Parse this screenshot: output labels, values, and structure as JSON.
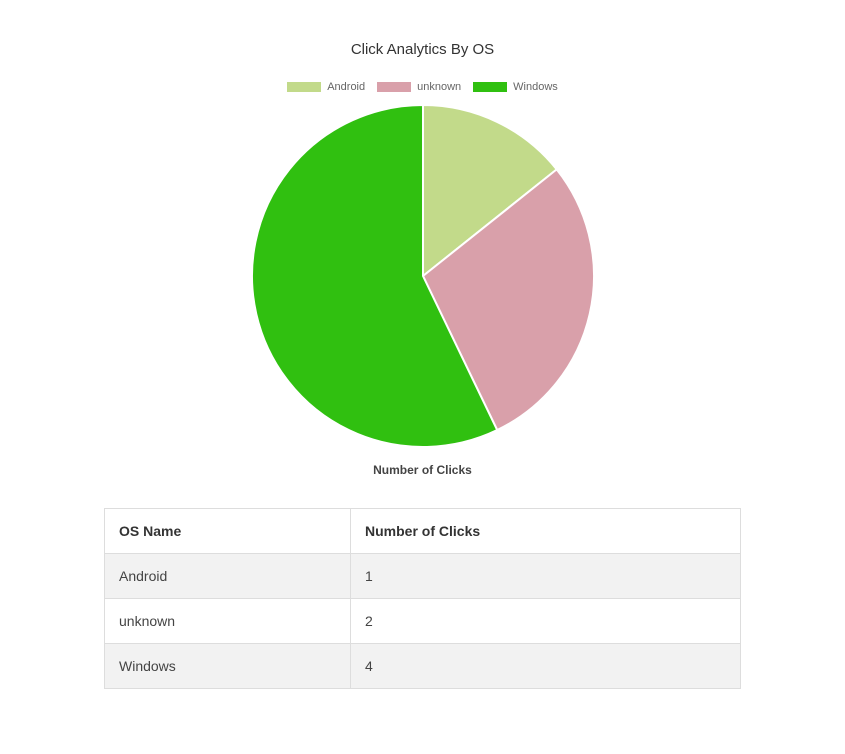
{
  "chart_data": {
    "type": "pie",
    "title": "Click Analytics By OS",
    "xlabel": "Number of Clicks",
    "legend": "top",
    "categories": [
      "Android",
      "unknown",
      "Windows"
    ],
    "values": [
      1,
      2,
      4
    ],
    "colors": [
      "#c2da8a",
      "#d9a0aa",
      "#30c010"
    ]
  },
  "table": {
    "headers": [
      "OS Name",
      "Number of Clicks"
    ],
    "rows": [
      [
        "Android",
        "1"
      ],
      [
        "unknown",
        "2"
      ],
      [
        "Windows",
        "4"
      ]
    ]
  }
}
